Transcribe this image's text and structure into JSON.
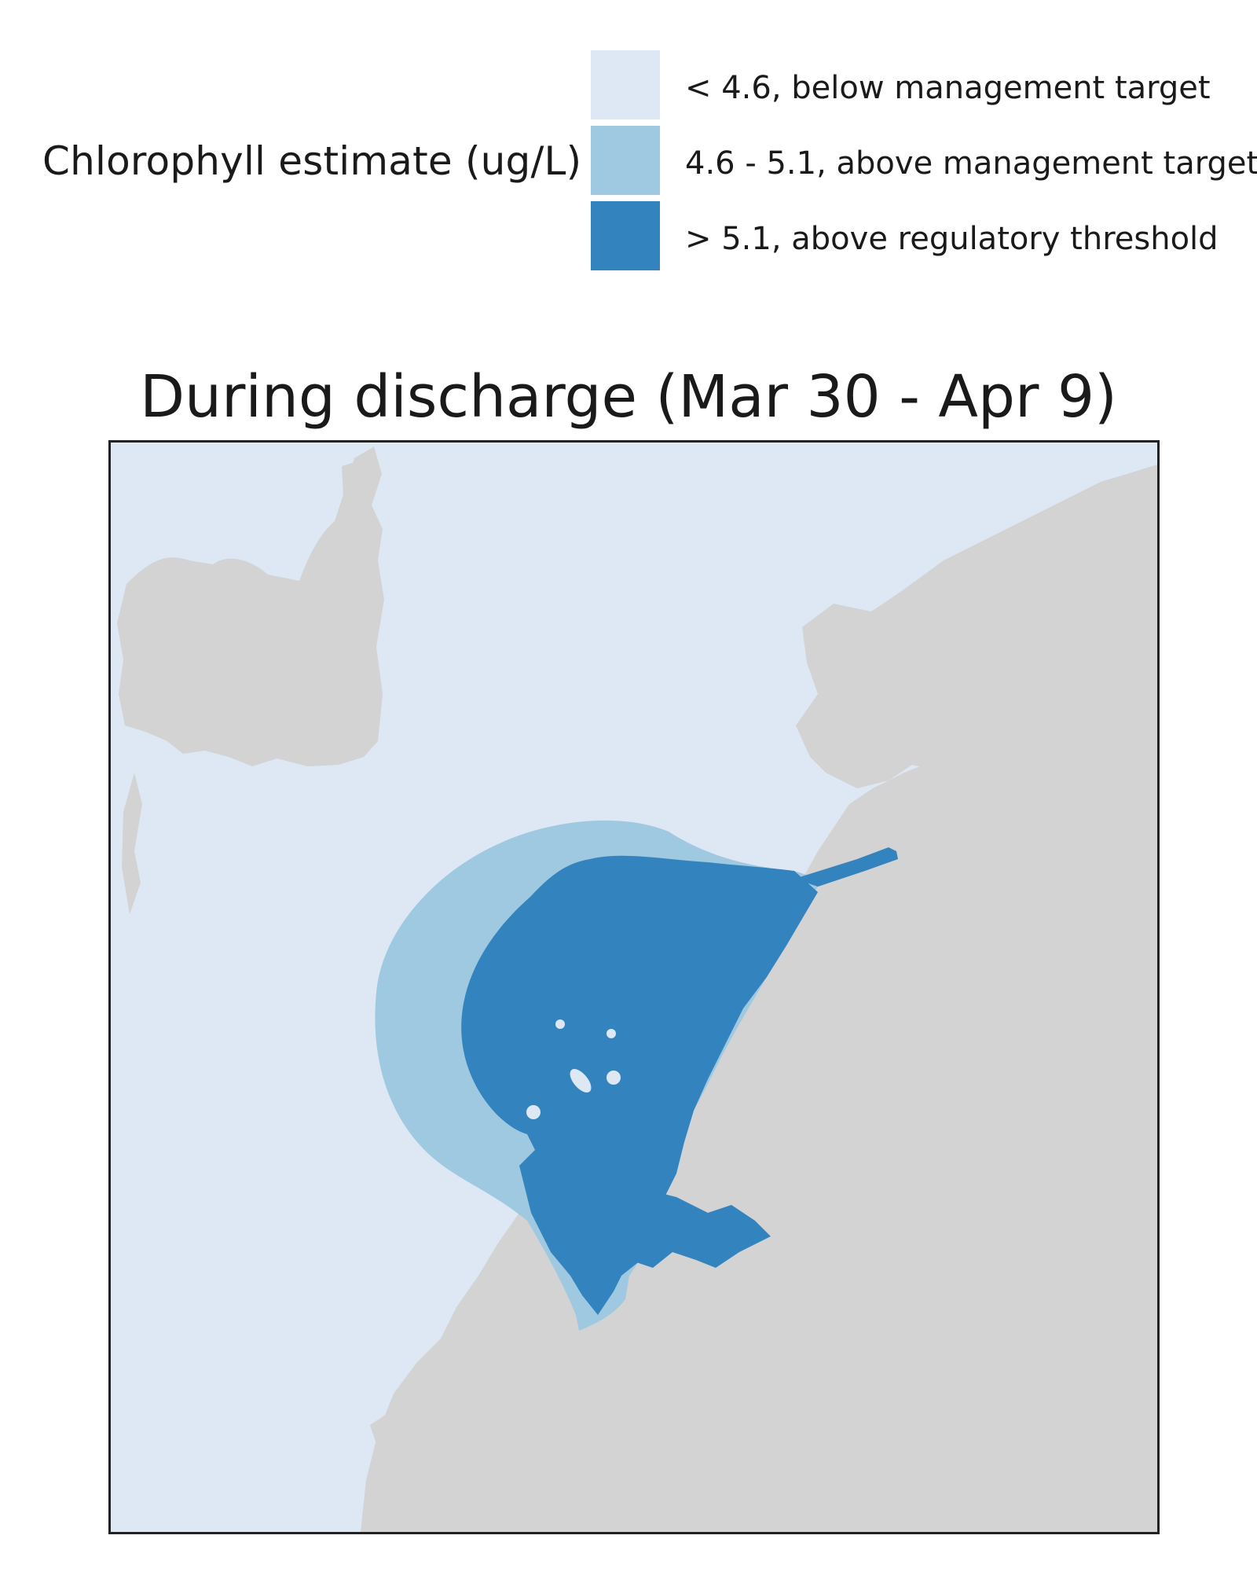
{
  "legend": {
    "title": "Chlorophyll estimate (ug/L)",
    "items": [
      {
        "label": "< 4.6, below management target",
        "color": "#dde8f4"
      },
      {
        "label": "4.6 - 5.1, above management target",
        "color": "#9fc9e0"
      },
      {
        "label": "> 5.1, above regulatory threshold",
        "color": "#3283be"
      }
    ]
  },
  "map": {
    "title": "During discharge (Mar 30 - Apr 9)",
    "colors": {
      "water": "#dde8f4",
      "land": "#d3d3d3",
      "frame": "#222222"
    }
  }
}
